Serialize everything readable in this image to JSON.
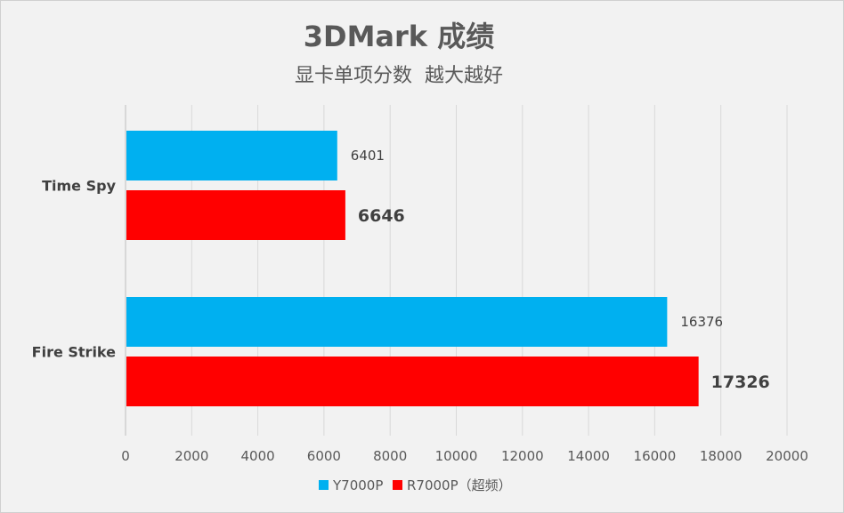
{
  "chart_data": {
    "type": "bar",
    "orientation": "horizontal",
    "title": "3DMark 成绩",
    "subtitle": "显卡单项分数  越大越好",
    "categories": [
      "Time Spy",
      "Fire Strike"
    ],
    "series": [
      {
        "name": "Y7000P",
        "color": "#00b0f0",
        "values": [
          6401,
          16376
        ]
      },
      {
        "name": "R7000P（超频）",
        "color": "#ff0000",
        "values": [
          6646,
          17326
        ]
      }
    ],
    "xlim": [
      0,
      20000
    ],
    "xticks": [
      0,
      2000,
      4000,
      6000,
      8000,
      10000,
      12000,
      14000,
      16000,
      18000,
      20000
    ],
    "grid": true,
    "legend": "bottom"
  }
}
